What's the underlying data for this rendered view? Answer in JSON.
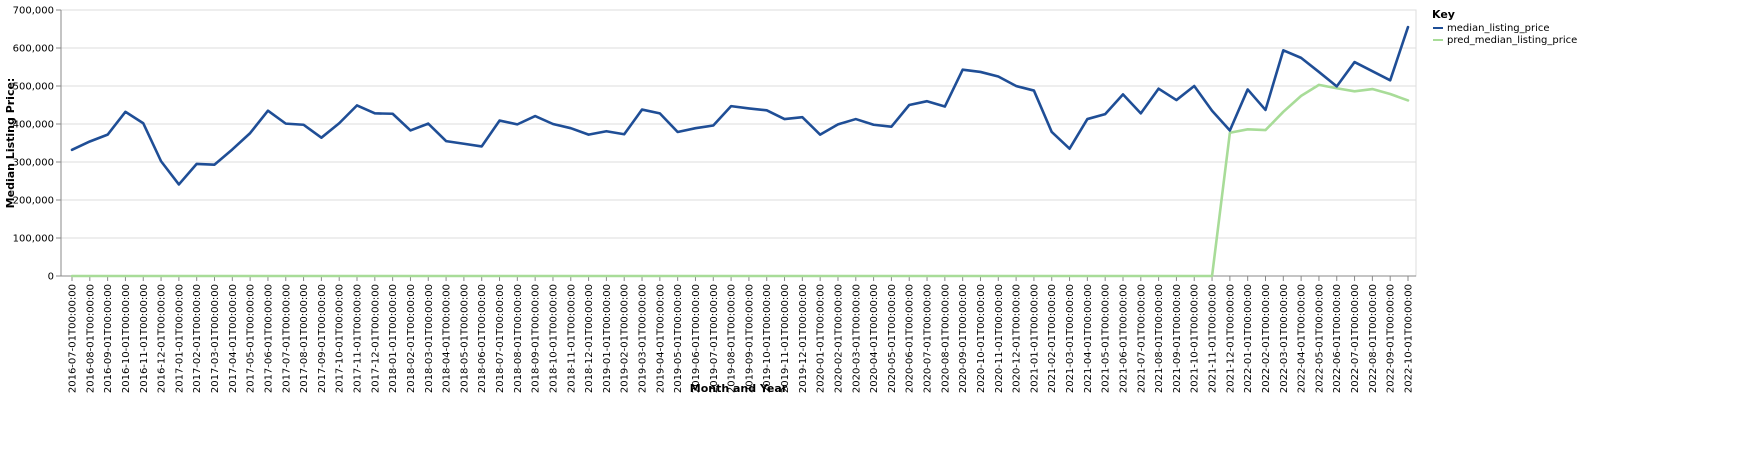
{
  "chart_data": {
    "type": "line",
    "xlabel": "Month and Year",
    "ylabel": "Median Listing Price:",
    "ylim": [
      0,
      700000
    ],
    "y_ticks": [
      "0",
      "100,000",
      "200,000",
      "300,000",
      "400,000",
      "500,000",
      "600,000",
      "700,000"
    ],
    "y_tick_values": [
      0,
      100000,
      200000,
      300000,
      400000,
      500000,
      600000,
      700000
    ],
    "grid": true,
    "legend": {
      "title": "Key",
      "placement": "top-right"
    },
    "categories": [
      "2016-07-01T00:00:00",
      "2016-08-01T00:00:00",
      "2016-09-01T00:00:00",
      "2016-10-01T00:00:00",
      "2016-11-01T00:00:00",
      "2016-12-01T00:00:00",
      "2017-01-01T00:00:00",
      "2017-02-01T00:00:00",
      "2017-03-01T00:00:00",
      "2017-04-01T00:00:00",
      "2017-05-01T00:00:00",
      "2017-06-01T00:00:00",
      "2017-07-01T00:00:00",
      "2017-08-01T00:00:00",
      "2017-09-01T00:00:00",
      "2017-10-01T00:00:00",
      "2017-11-01T00:00:00",
      "2017-12-01T00:00:00",
      "2018-01-01T00:00:00",
      "2018-02-01T00:00:00",
      "2018-03-01T00:00:00",
      "2018-04-01T00:00:00",
      "2018-05-01T00:00:00",
      "2018-06-01T00:00:00",
      "2018-07-01T00:00:00",
      "2018-08-01T00:00:00",
      "2018-09-01T00:00:00",
      "2018-10-01T00:00:00",
      "2018-11-01T00:00:00",
      "2018-12-01T00:00:00",
      "2019-01-01T00:00:00",
      "2019-02-01T00:00:00",
      "2019-03-01T00:00:00",
      "2019-04-01T00:00:00",
      "2019-05-01T00:00:00",
      "2019-06-01T00:00:00",
      "2019-07-01T00:00:00",
      "2019-08-01T00:00:00",
      "2019-09-01T00:00:00",
      "2019-10-01T00:00:00",
      "2019-11-01T00:00:00",
      "2019-12-01T00:00:00",
      "2020-01-01T00:00:00",
      "2020-02-01T00:00:00",
      "2020-03-01T00:00:00",
      "2020-04-01T00:00:00",
      "2020-05-01T00:00:00",
      "2020-06-01T00:00:00",
      "2020-07-01T00:00:00",
      "2020-08-01T00:00:00",
      "2020-09-01T00:00:00",
      "2020-10-01T00:00:00",
      "2020-11-01T00:00:00",
      "2020-12-01T00:00:00",
      "2021-01-01T00:00:00",
      "2021-02-01T00:00:00",
      "2021-03-01T00:00:00",
      "2021-04-01T00:00:00",
      "2021-05-01T00:00:00",
      "2021-06-01T00:00:00",
      "2021-07-01T00:00:00",
      "2021-08-01T00:00:00",
      "2021-09-01T00:00:00",
      "2021-10-01T00:00:00",
      "2021-11-01T00:00:00",
      "2021-12-01T00:00:00",
      "2022-01-01T00:00:00",
      "2022-02-01T00:00:00",
      "2022-03-01T00:00:00",
      "2022-04-01T00:00:00",
      "2022-05-01T00:00:00",
      "2022-06-01T00:00:00",
      "2022-07-01T00:00:00",
      "2022-08-01T00:00:00",
      "2022-09-01T00:00:00",
      "2022-10-01T00:00:00"
    ],
    "series": [
      {
        "name": "median_listing_price",
        "color": "#1f4e96",
        "values": [
          332000,
          354000,
          372000,
          432000,
          402000,
          302000,
          241000,
          295000,
          293000,
          333000,
          376000,
          435000,
          401000,
          398000,
          364000,
          402000,
          449000,
          428000,
          427000,
          383000,
          401000,
          355000,
          348000,
          341000,
          409000,
          399000,
          421000,
          400000,
          389000,
          372000,
          381000,
          373000,
          438000,
          428000,
          379000,
          389000,
          396000,
          447000,
          441000,
          436000,
          413000,
          418000,
          372000,
          399000,
          413000,
          398000,
          393000,
          450000,
          460000,
          446000,
          543000,
          537000,
          525000,
          500000,
          488000,
          379000,
          335000,
          413000,
          426000,
          478000,
          428000,
          493000,
          463000,
          500000,
          435000,
          383000,
          491000,
          437000,
          594000,
          574000,
          537000,
          499000,
          563000,
          539000,
          515000,
          655000
        ]
      },
      {
        "name": "pred_median_listing_price",
        "color": "#a8dc98",
        "values": [
          0,
          0,
          0,
          0,
          0,
          0,
          0,
          0,
          0,
          0,
          0,
          0,
          0,
          0,
          0,
          0,
          0,
          0,
          0,
          0,
          0,
          0,
          0,
          0,
          0,
          0,
          0,
          0,
          0,
          0,
          0,
          0,
          0,
          0,
          0,
          0,
          0,
          0,
          0,
          0,
          0,
          0,
          0,
          0,
          0,
          0,
          0,
          0,
          0,
          0,
          0,
          0,
          0,
          0,
          0,
          0,
          0,
          0,
          0,
          0,
          0,
          0,
          0,
          0,
          0,
          377000,
          386000,
          384000,
          432000,
          474000,
          503000,
          494000,
          486000,
          492000,
          479000,
          462000
        ]
      }
    ]
  }
}
